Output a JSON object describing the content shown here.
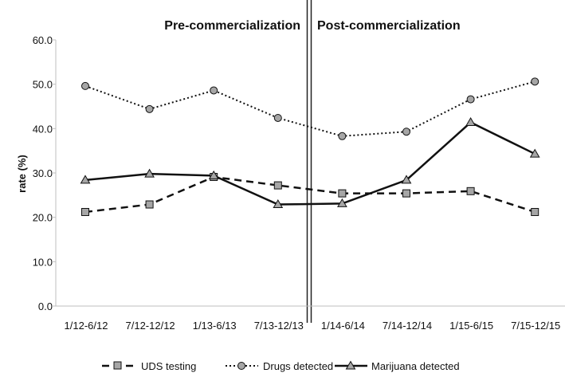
{
  "chart_data": {
    "type": "line",
    "ylabel": "rate (%)",
    "ylim": [
      0,
      60
    ],
    "yticks": [
      "0.0",
      "10.0",
      "20.0",
      "30.0",
      "40.0",
      "50.0",
      "60.0"
    ],
    "categories": [
      "1/12-6/12",
      "7/12-12/12",
      "1/13-6/13",
      "7/13-12/13",
      "1/14-6/14",
      "7/14-12/14",
      "1/15-6/15",
      "7/15-12/15"
    ],
    "regions": [
      "Pre-commercialization",
      "Post-commercialization"
    ],
    "series": [
      {
        "name": "UDS testing",
        "marker": "square",
        "style": "dashed",
        "values": [
          21.2,
          22.9,
          29.1,
          27.2,
          25.4,
          25.4,
          25.9,
          21.2
        ]
      },
      {
        "name": "Drugs detected",
        "marker": "circle",
        "style": "dotted",
        "values": [
          49.6,
          44.4,
          48.6,
          42.4,
          38.3,
          39.3,
          46.6,
          50.6
        ]
      },
      {
        "name": "Marijuana detected",
        "marker": "triangle",
        "style": "solid",
        "values": [
          28.4,
          29.8,
          29.4,
          22.9,
          23.1,
          28.4,
          41.4,
          34.3
        ]
      }
    ],
    "colors": {
      "line": "#111111",
      "marker_fill": "#a6a6a6",
      "axis": "#bfbfbf"
    }
  }
}
